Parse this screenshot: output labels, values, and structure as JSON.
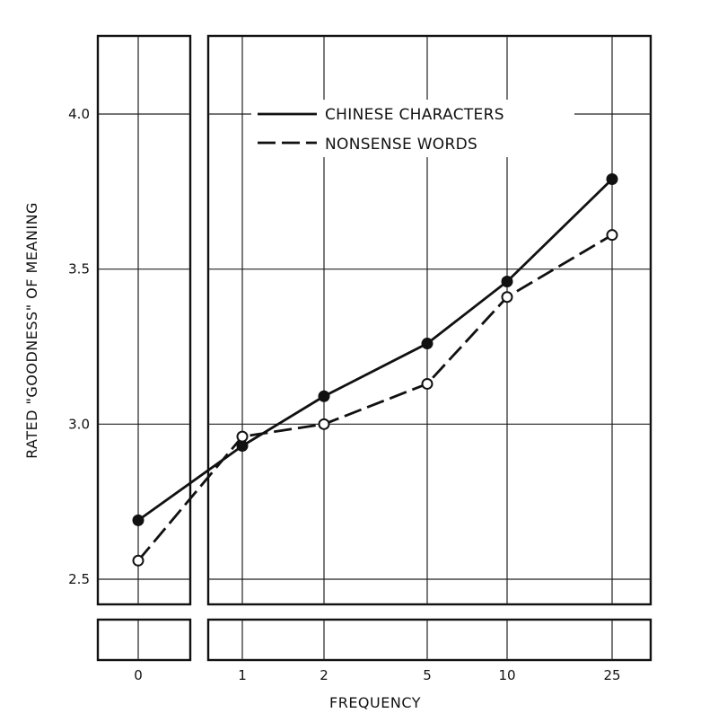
{
  "chart_data": {
    "type": "line",
    "x": [
      "0",
      "1",
      "2",
      "5",
      "10",
      "25"
    ],
    "xlabel": "FREQUENCY",
    "ylabel": "RATED \"GOODNESS\" OF MEANING",
    "ylim": [
      2.5,
      4.0
    ],
    "yticks": [
      "2.5",
      "3.0",
      "3.5",
      "4.0"
    ],
    "grid": true,
    "legend_position": "top-center",
    "series": [
      {
        "name": "CHINESE CHARACTERS",
        "style": "solid",
        "marker": "filled-circle",
        "values": [
          2.69,
          2.93,
          3.09,
          3.26,
          3.46,
          3.79
        ]
      },
      {
        "name": "NONSENSE WORDS",
        "style": "dashed",
        "marker": "open-circle",
        "values": [
          2.56,
          2.96,
          3.0,
          3.13,
          3.41,
          3.61
        ]
      }
    ]
  }
}
